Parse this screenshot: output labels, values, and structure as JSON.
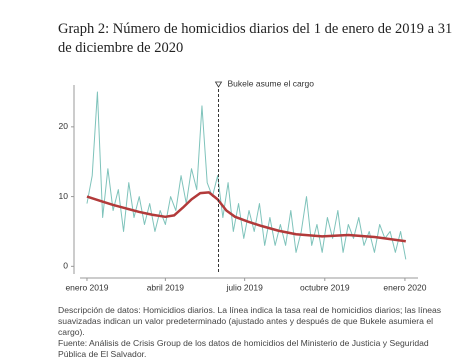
{
  "chart_data": {
    "type": "line",
    "title": "Graph 2: Número de homicidios diarios del 1 de enero de 2019 a 31 de diciembre de 2020",
    "caption": "Descripción de datos: Homicidios diarios. La línea indica la tasa real de homicidios diarios; las líneas suavizadas indican un valor predeterminado (ajustado antes y después de que Bukele asumiera el cargo).",
    "source": "Fuente: Análisis de Crisis Group de los datos de homicidios del Ministerio de Justicia y Seguridad Pública de El Salvador.",
    "xlim": [
      -8,
      380
    ],
    "ylim": [
      -1.1,
      26
    ],
    "yticks": [
      0,
      10,
      20
    ],
    "xticks": [
      {
        "value": 0,
        "label": "enero 2019"
      },
      {
        "value": 90,
        "label": "abril 2019"
      },
      {
        "value": 181,
        "label": "julio 2019"
      },
      {
        "value": 273,
        "label": "octubre 2019"
      },
      {
        "value": 365,
        "label": "enero 2020"
      }
    ],
    "annotation": {
      "text": "Bukele asume el cargo",
      "x": 151
    },
    "series": [
      {
        "color": "#7fc3bb",
        "width": 1,
        "x": [
          0,
          6,
          12,
          18,
          24,
          30,
          36,
          42,
          48,
          54,
          60,
          66,
          72,
          78,
          84,
          90,
          96,
          102,
          108,
          114,
          120,
          126,
          132,
          138,
          144,
          150,
          156,
          162,
          168,
          174,
          180,
          186,
          192,
          198,
          204,
          210,
          216,
          222,
          228,
          234,
          240,
          246,
          252,
          258,
          264,
          270,
          276,
          282,
          288,
          294,
          300,
          306,
          312,
          318,
          324,
          330,
          336,
          342,
          348,
          354,
          360,
          366
        ],
        "values": [
          9,
          13,
          25,
          7,
          14,
          8,
          11,
          5,
          12,
          7,
          10,
          6,
          9,
          5,
          8,
          6,
          10,
          8,
          13,
          9,
          14,
          11,
          23,
          12,
          10,
          13,
          7,
          12,
          5,
          9,
          4,
          8,
          5,
          9,
          3,
          7,
          3,
          6,
          3,
          8,
          2,
          5,
          10,
          3,
          6,
          2,
          7,
          4,
          8,
          2,
          6,
          4,
          7,
          3,
          5,
          2,
          6,
          4,
          5,
          2,
          5,
          1
        ]
      },
      {
        "color": "#b23a3a",
        "width": 2.5,
        "x": [
          0,
          15,
          30,
          45,
          60,
          75,
          90,
          100,
          110,
          120,
          130,
          140,
          150,
          160,
          170,
          185,
          200,
          220,
          240,
          270,
          300,
          330,
          366
        ],
        "values": [
          10,
          9.4,
          8.8,
          8.3,
          7.8,
          7.4,
          7.1,
          7.3,
          8.4,
          9.6,
          10.5,
          10.6,
          9.6,
          8,
          7.1,
          6.4,
          5.8,
          5.1,
          4.6,
          4.3,
          4.5,
          4.2,
          3.6
        ]
      }
    ]
  }
}
